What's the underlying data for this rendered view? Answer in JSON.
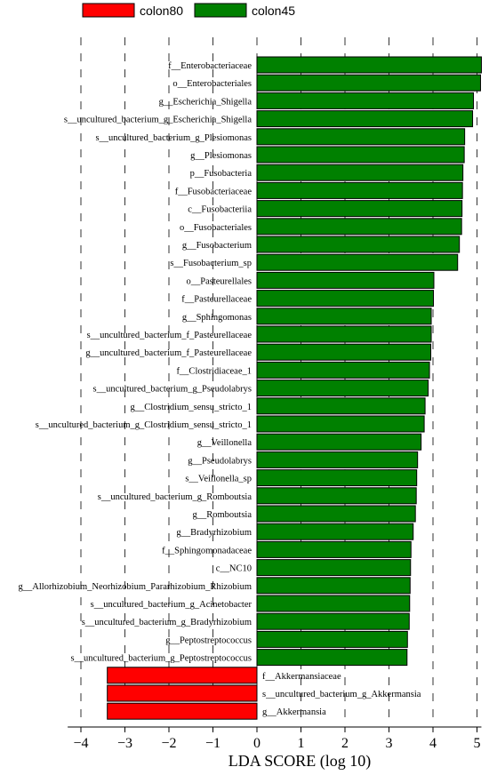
{
  "chart_data": {
    "type": "bar",
    "orientation": "horizontal",
    "xlabel": "LDA SCORE (log 10)",
    "xlim": [
      -4.3,
      5.1
    ],
    "xticks": [
      -4,
      -3,
      -2,
      -1,
      0,
      1,
      2,
      3,
      4,
      5
    ],
    "grid": "vertical dashed",
    "legend": {
      "placement": "top-left",
      "entries": [
        {
          "name": "colon80",
          "color": "#ff0000"
        },
        {
          "name": "colon45",
          "color": "#008000"
        }
      ]
    },
    "series": [
      {
        "name": "colon45",
        "color": "#008000"
      },
      {
        "name": "colon80",
        "color": "#ff0000"
      }
    ],
    "bars": [
      {
        "label": "f__Enterobacteriaceae",
        "value": 5.1,
        "group": "colon45"
      },
      {
        "label": "o__Enterobacteriales",
        "value": 5.08,
        "group": "colon45"
      },
      {
        "label": "g__Escherichia_Shigella",
        "value": 4.92,
        "group": "colon45"
      },
      {
        "label": "s__uncultured_bacterium_g_Escherichia_Shigella",
        "value": 4.9,
        "group": "colon45"
      },
      {
        "label": "s__uncultured_bacterium_g_Plesiomonas",
        "value": 4.72,
        "group": "colon45"
      },
      {
        "label": "g__Plesiomonas",
        "value": 4.71,
        "group": "colon45"
      },
      {
        "label": "p__Fusobacteria",
        "value": 4.68,
        "group": "colon45"
      },
      {
        "label": "f__Fusobacteriaceae",
        "value": 4.67,
        "group": "colon45"
      },
      {
        "label": "c__Fusobacteriia",
        "value": 4.66,
        "group": "colon45"
      },
      {
        "label": "o__Fusobacteriales",
        "value": 4.65,
        "group": "colon45"
      },
      {
        "label": "g__Fusobacterium",
        "value": 4.6,
        "group": "colon45"
      },
      {
        "label": "s__Fusobacterium_sp",
        "value": 4.56,
        "group": "colon45"
      },
      {
        "label": "o__Pasteurellales",
        "value": 4.02,
        "group": "colon45"
      },
      {
        "label": "f__Pasteurellaceae",
        "value": 4.01,
        "group": "colon45"
      },
      {
        "label": "g__Sphingomonas",
        "value": 3.96,
        "group": "colon45"
      },
      {
        "label": "s__uncultured_bacterium_f_Pasteurellaceae",
        "value": 3.96,
        "group": "colon45"
      },
      {
        "label": "g__uncultured_bacterium_f_Pasteurellaceae",
        "value": 3.95,
        "group": "colon45"
      },
      {
        "label": "f__Clostridiaceae_1",
        "value": 3.92,
        "group": "colon45"
      },
      {
        "label": "s__uncultured_bacterium_g_Pseudolabrys",
        "value": 3.89,
        "group": "colon45"
      },
      {
        "label": "g__Clostridium_sensu_stricto_1",
        "value": 3.82,
        "group": "colon45"
      },
      {
        "label": "s__uncultured_bacterium_g_Clostridium_sensu_stricto_1",
        "value": 3.8,
        "group": "colon45"
      },
      {
        "label": "g__Veillonella",
        "value": 3.73,
        "group": "colon45"
      },
      {
        "label": "g__Pseudolabrys",
        "value": 3.65,
        "group": "colon45"
      },
      {
        "label": "s__Veillonella_sp",
        "value": 3.63,
        "group": "colon45"
      },
      {
        "label": "s__uncultured_bacterium_g_Romboutsia",
        "value": 3.62,
        "group": "colon45"
      },
      {
        "label": "g__Romboutsia",
        "value": 3.6,
        "group": "colon45"
      },
      {
        "label": "g__Bradyrhizobium",
        "value": 3.55,
        "group": "colon45"
      },
      {
        "label": "f__Sphingomonadaceae",
        "value": 3.5,
        "group": "colon45"
      },
      {
        "label": "c__NC10",
        "value": 3.49,
        "group": "colon45"
      },
      {
        "label": "g__Allorhizobium_Neorhizobium_Pararhizobium_Rhizobium",
        "value": 3.48,
        "group": "colon45"
      },
      {
        "label": "s__uncultured_bacterium_g_Acinetobacter",
        "value": 3.47,
        "group": "colon45"
      },
      {
        "label": "s__uncultured_bacterium_g_Bradyrhizobium",
        "value": 3.46,
        "group": "colon45"
      },
      {
        "label": "g__Peptostreptococcus",
        "value": 3.42,
        "group": "colon45"
      },
      {
        "label": "s__uncultured_bacterium_g_Peptostreptococcus",
        "value": 3.41,
        "group": "colon45"
      },
      {
        "label": "f__Akkermansiaceae",
        "value": -3.4,
        "group": "colon80"
      },
      {
        "label": "s__uncultured_bacterium_g_Akkermansia",
        "value": -3.4,
        "group": "colon80"
      },
      {
        "label": "g__Akkermansia",
        "value": -3.4,
        "group": "colon80"
      }
    ]
  }
}
